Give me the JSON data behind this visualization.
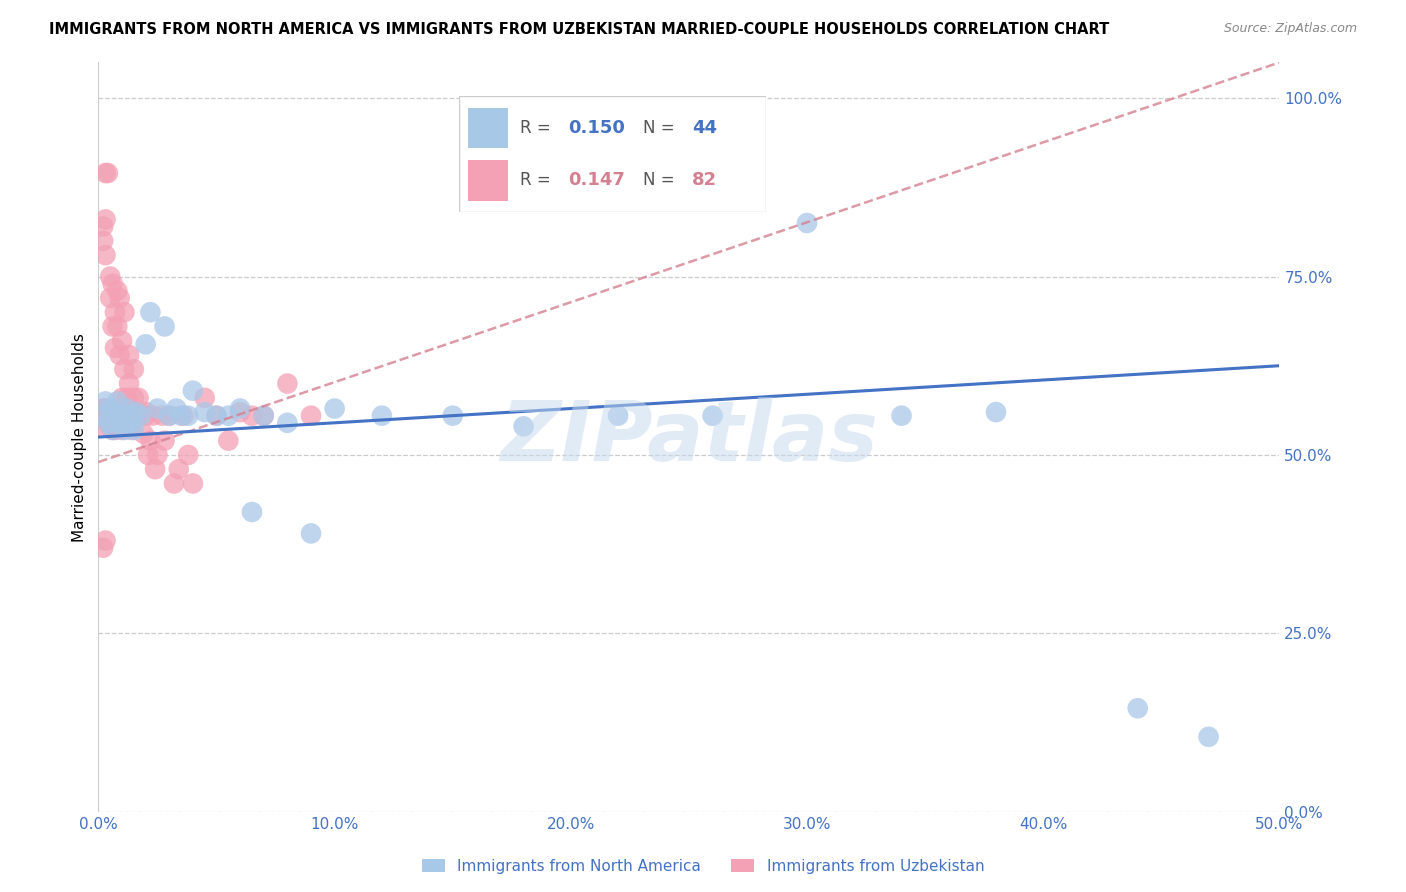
{
  "title": "IMMIGRANTS FROM NORTH AMERICA VS IMMIGRANTS FROM UZBEKISTAN MARRIED-COUPLE HOUSEHOLDS CORRELATION CHART",
  "source": "Source: ZipAtlas.com",
  "ylabel": "Married-couple Households",
  "xlim": [
    0,
    0.5
  ],
  "ylim": [
    0,
    1.05
  ],
  "ytick_labels": [
    "0.0%",
    "25.0%",
    "50.0%",
    "75.0%",
    "100.0%"
  ],
  "ytick_values": [
    0,
    0.25,
    0.5,
    0.75,
    1.0
  ],
  "xtick_labels": [
    "0.0%",
    "10.0%",
    "20.0%",
    "30.0%",
    "40.0%",
    "50.0%"
  ],
  "xtick_values": [
    0,
    0.1,
    0.2,
    0.3,
    0.4,
    0.5
  ],
  "legend_r1": "R = 0.150",
  "legend_n1": "N = 44",
  "legend_r2": "R = 0.147",
  "legend_n2": "N = 82",
  "color_blue": "#a8c8e8",
  "color_pink": "#f4a0b5",
  "color_blue_line": "#4472c4",
  "color_pink_line": "#d48090",
  "color_axis_labels": "#4472c4",
  "watermark": "ZIPatlas",
  "north_america_x": [
    0.002,
    0.003,
    0.004,
    0.005,
    0.006,
    0.007,
    0.008,
    0.009,
    0.01,
    0.011,
    0.012,
    0.013,
    0.014,
    0.015,
    0.016,
    0.018,
    0.02,
    0.022,
    0.025,
    0.028,
    0.03,
    0.033,
    0.035,
    0.038,
    0.04,
    0.045,
    0.05,
    0.055,
    0.06,
    0.065,
    0.07,
    0.08,
    0.09,
    0.1,
    0.12,
    0.15,
    0.18,
    0.22,
    0.26,
    0.3,
    0.34,
    0.38,
    0.44,
    0.47
  ],
  "north_america_y": [
    0.555,
    0.575,
    0.545,
    0.565,
    0.535,
    0.555,
    0.575,
    0.545,
    0.555,
    0.535,
    0.565,
    0.555,
    0.545,
    0.535,
    0.56,
    0.555,
    0.655,
    0.7,
    0.565,
    0.68,
    0.555,
    0.565,
    0.555,
    0.555,
    0.59,
    0.56,
    0.555,
    0.555,
    0.565,
    0.42,
    0.555,
    0.545,
    0.39,
    0.565,
    0.555,
    0.555,
    0.54,
    0.555,
    0.555,
    0.825,
    0.555,
    0.56,
    0.145,
    0.105
  ],
  "uzbekistan_x": [
    0.001,
    0.001,
    0.002,
    0.002,
    0.002,
    0.003,
    0.003,
    0.003,
    0.003,
    0.004,
    0.004,
    0.004,
    0.005,
    0.005,
    0.005,
    0.006,
    0.006,
    0.006,
    0.006,
    0.007,
    0.007,
    0.007,
    0.007,
    0.008,
    0.008,
    0.008,
    0.009,
    0.009,
    0.009,
    0.01,
    0.01,
    0.01,
    0.01,
    0.011,
    0.011,
    0.011,
    0.012,
    0.012,
    0.012,
    0.013,
    0.013,
    0.014,
    0.014,
    0.015,
    0.015,
    0.016,
    0.017,
    0.018,
    0.019,
    0.02,
    0.021,
    0.022,
    0.023,
    0.024,
    0.025,
    0.027,
    0.028,
    0.03,
    0.032,
    0.034,
    0.036,
    0.038,
    0.04,
    0.045,
    0.05,
    0.055,
    0.06,
    0.065,
    0.07,
    0.08,
    0.09,
    0.003,
    0.004,
    0.005,
    0.006,
    0.007,
    0.012,
    0.015,
    0.002,
    0.003,
    0.01,
    0.02
  ],
  "uzbekistan_y": [
    0.555,
    0.54,
    0.8,
    0.82,
    0.565,
    0.78,
    0.83,
    0.565,
    0.555,
    0.56,
    0.545,
    0.555,
    0.75,
    0.72,
    0.565,
    0.68,
    0.74,
    0.555,
    0.535,
    0.7,
    0.65,
    0.555,
    0.535,
    0.73,
    0.68,
    0.545,
    0.64,
    0.72,
    0.555,
    0.58,
    0.66,
    0.555,
    0.535,
    0.62,
    0.7,
    0.545,
    0.56,
    0.58,
    0.545,
    0.6,
    0.64,
    0.555,
    0.535,
    0.58,
    0.62,
    0.56,
    0.58,
    0.555,
    0.53,
    0.56,
    0.5,
    0.52,
    0.555,
    0.48,
    0.5,
    0.555,
    0.52,
    0.555,
    0.46,
    0.48,
    0.555,
    0.5,
    0.46,
    0.58,
    0.555,
    0.52,
    0.56,
    0.555,
    0.555,
    0.6,
    0.555,
    0.895,
    0.895,
    0.54,
    0.555,
    0.555,
    0.555,
    0.555,
    0.37,
    0.38,
    0.555,
    0.555
  ],
  "na_trend_x": [
    0.0,
    0.5
  ],
  "na_trend_y": [
    0.525,
    0.625
  ],
  "uz_trend_x": [
    0.0,
    0.5
  ],
  "uz_trend_y": [
    0.49,
    1.05
  ]
}
